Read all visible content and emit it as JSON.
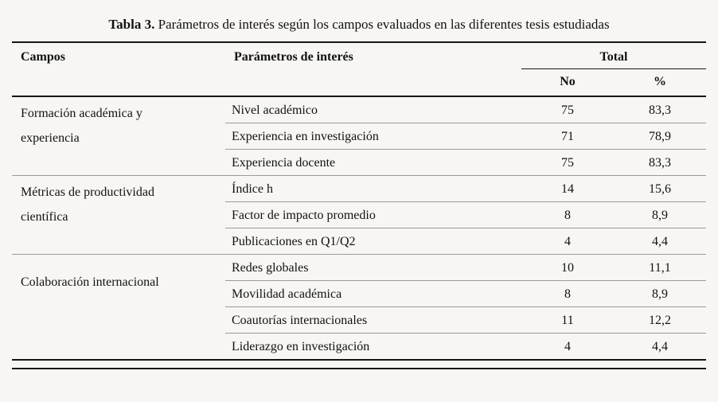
{
  "title": {
    "label": "Tabla 3.",
    "text": " Parámetros de interés según los campos evaluados en las diferentes tesis estudiadas"
  },
  "table": {
    "headers": {
      "campos": "Campos",
      "parametros": "Parámetros de interés",
      "total": "Total",
      "no": "No",
      "pct": "%"
    },
    "groups": [
      {
        "campo": "Formación académica y experiencia",
        "rows": [
          {
            "parametro": "Nivel académico",
            "no": "75",
            "pct": "83,3"
          },
          {
            "parametro": "Experiencia en investigación",
            "no": "71",
            "pct": "78,9"
          },
          {
            "parametro": "Experiencia docente",
            "no": "75",
            "pct": "83,3"
          }
        ]
      },
      {
        "campo": "Métricas de productividad científica",
        "rows": [
          {
            "parametro": "Índice h",
            "no": "14",
            "pct": "15,6"
          },
          {
            "parametro": "Factor de impacto promedio",
            "no": "8",
            "pct": "8,9"
          },
          {
            "parametro": "Publicaciones en Q1/Q2",
            "no": "4",
            "pct": "4,4"
          }
        ]
      },
      {
        "campo": "Colaboración internacional",
        "rows": [
          {
            "parametro": "Redes globales",
            "no": "10",
            "pct": "11,1"
          },
          {
            "parametro": "Movilidad académica",
            "no": "8",
            "pct": "8,9"
          },
          {
            "parametro": "Coautorías internacionales",
            "no": "11",
            "pct": "12,2"
          },
          {
            "parametro": "Liderazgo en investigación",
            "no": "4",
            "pct": "4,4"
          }
        ]
      }
    ]
  }
}
